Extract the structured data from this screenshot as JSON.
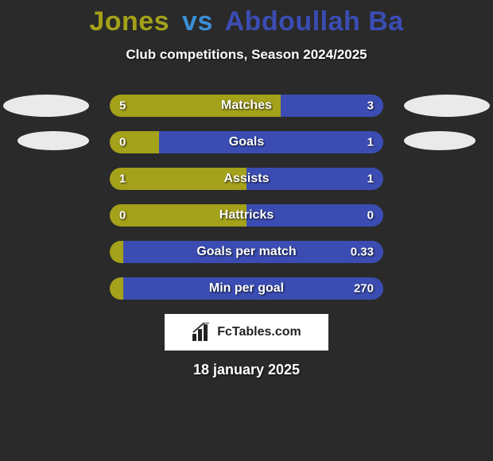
{
  "title": {
    "player1": "Jones",
    "vs": "vs",
    "player2": "Abdoullah Ba",
    "player1_color": "#a4a11a",
    "player2_color": "#3b4db3",
    "vs_color": "#3b8ed6",
    "fontsize": 34
  },
  "subtitle": {
    "text": "Club competitions, Season 2024/2025",
    "fontsize": 17,
    "color": "#ffffff"
  },
  "background_color": "#2a2a2a",
  "bubble_color": "#eaeaea",
  "bars": {
    "track_color": "#3e3e3e",
    "left_color": "#a4a11a",
    "right_color": "#3b4db3",
    "label_fontsize": 16,
    "value_fontsize": 15,
    "rows": [
      {
        "label": "Matches",
        "left_value": "5",
        "right_value": "3",
        "left_pct": 62.5,
        "right_pct": 37.5
      },
      {
        "label": "Goals",
        "left_value": "0",
        "right_value": "1",
        "left_pct": 18,
        "right_pct": 82
      },
      {
        "label": "Assists",
        "left_value": "1",
        "right_value": "1",
        "left_pct": 50,
        "right_pct": 50
      },
      {
        "label": "Hattricks",
        "left_value": "0",
        "right_value": "0",
        "left_pct": 50,
        "right_pct": 50
      },
      {
        "label": "Goals per match",
        "left_value": "",
        "right_value": "0.33",
        "left_pct": 5,
        "right_pct": 95
      },
      {
        "label": "Min per goal",
        "left_value": "",
        "right_value": "270",
        "left_pct": 5,
        "right_pct": 95
      }
    ]
  },
  "footer": {
    "brand_text": "FcTables.com",
    "brand_fontsize": 16,
    "icon_color": "#222222",
    "box_bg": "#ffffff"
  },
  "date": {
    "text": "18 january 2025",
    "fontsize": 18,
    "color": "#ffffff"
  }
}
